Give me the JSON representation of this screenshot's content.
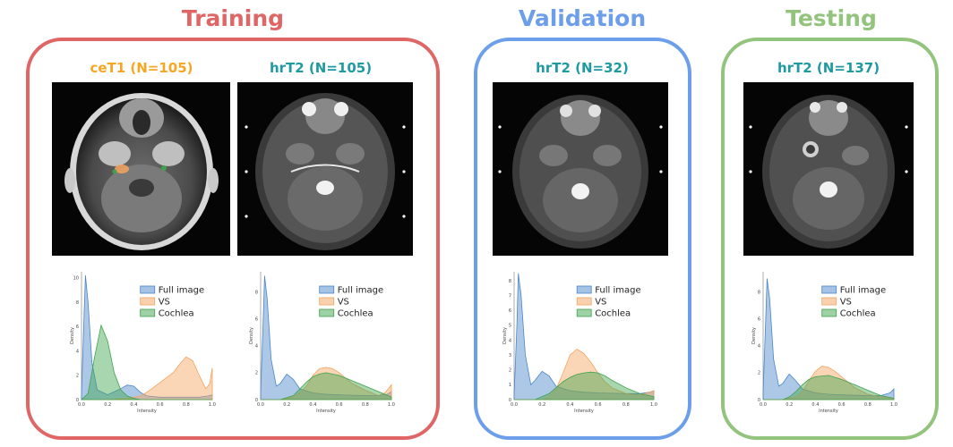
{
  "colors": {
    "training": "#e06666",
    "validation": "#6d9eeb",
    "testing": "#93c47d",
    "cet1_title": "#f6a623",
    "hrt2_title": "#1e9aa0",
    "full_image": "#4a86c8",
    "vs": "#f4a460",
    "cochlea": "#3fa34d"
  },
  "sections": {
    "training": "Training",
    "validation": "Validation",
    "testing": "Testing"
  },
  "panels": [
    {
      "title": "ceT1 (N=105)"
    },
    {
      "title": "hrT2 (N=105)"
    },
    {
      "title": "hrT2 (N=32)"
    },
    {
      "title": "hrT2 (N=137)"
    }
  ],
  "chart_data": [
    {
      "type": "area",
      "xlabel": "Intensity",
      "ylabel": "Density",
      "xlim": [
        0,
        1
      ],
      "ylim": [
        0,
        10.5
      ],
      "xticks": [
        "0.0",
        "0.2",
        "0.4",
        "0.6",
        "0.8",
        "1.0"
      ],
      "yticks": [
        "0",
        "2",
        "4",
        "6",
        "8",
        "10"
      ],
      "legend": "top-right",
      "series": [
        {
          "name": "Full image",
          "x": [
            0,
            0.02,
            0.03,
            0.05,
            0.08,
            0.12,
            0.2,
            0.3,
            0.35,
            0.4,
            0.45,
            0.5,
            0.6,
            0.8,
            0.9,
            0.97,
            1.0
          ],
          "y": [
            0.5,
            7,
            10.2,
            8,
            3,
            0.8,
            0.4,
            0.9,
            1.2,
            1.1,
            0.6,
            0.3,
            0.2,
            0.2,
            0.2,
            0.3,
            0.4
          ]
        },
        {
          "name": "VS",
          "x": [
            0,
            0.2,
            0.35,
            0.45,
            0.5,
            0.55,
            0.6,
            0.7,
            0.75,
            0.8,
            0.85,
            0.9,
            0.95,
            0.98,
            1.0
          ],
          "y": [
            0,
            0,
            0.1,
            0.3,
            0.6,
            1.0,
            1.4,
            2.2,
            2.9,
            3.5,
            3.2,
            2.0,
            0.9,
            1.3,
            2.6
          ]
        },
        {
          "name": "Cochlea",
          "x": [
            0,
            0.05,
            0.1,
            0.15,
            0.2,
            0.25,
            0.3,
            0.35,
            0.4,
            0.45,
            0.5,
            0.6,
            1.0
          ],
          "y": [
            0,
            0.5,
            3.5,
            6.1,
            4.8,
            2.2,
            0.8,
            0.3,
            0.1,
            0,
            0,
            0,
            0
          ]
        }
      ]
    },
    {
      "type": "area",
      "xlabel": "Intensity",
      "ylabel": "Density",
      "xlim": [
        0,
        1
      ],
      "ylim": [
        0,
        9.5
      ],
      "xticks": [
        "0.0",
        "0.2",
        "0.4",
        "0.6",
        "0.8",
        "1.0"
      ],
      "yticks": [
        "0",
        "2",
        "4",
        "6",
        "8"
      ],
      "legend": "top-right",
      "series": [
        {
          "name": "Full image",
          "x": [
            0,
            0.02,
            0.03,
            0.05,
            0.08,
            0.12,
            0.15,
            0.2,
            0.25,
            0.3,
            0.4,
            0.5,
            0.6,
            0.8,
            0.9,
            0.97,
            1.0
          ],
          "y": [
            0.5,
            6,
            9.2,
            7.5,
            3,
            1,
            1.2,
            1.9,
            1.5,
            0.8,
            0.5,
            0.4,
            0.35,
            0.3,
            0.3,
            0.4,
            0.6
          ]
        },
        {
          "name": "VS",
          "x": [
            0,
            0.15,
            0.25,
            0.3,
            0.35,
            0.4,
            0.45,
            0.5,
            0.55,
            0.6,
            0.65,
            0.7,
            0.8,
            0.9,
            0.95,
            1.0
          ],
          "y": [
            0,
            0,
            0.2,
            0.5,
            1.0,
            1.8,
            2.3,
            2.4,
            2.3,
            2.0,
            1.6,
            1.2,
            0.7,
            0.3,
            0.5,
            1.1
          ]
        },
        {
          "name": "Cochlea",
          "x": [
            0,
            0.15,
            0.25,
            0.3,
            0.35,
            0.4,
            0.45,
            0.5,
            0.6,
            0.7,
            0.8,
            0.9,
            1.0
          ],
          "y": [
            0,
            0,
            0.3,
            0.8,
            1.3,
            1.7,
            1.9,
            2.0,
            1.8,
            1.4,
            1.0,
            0.6,
            0.2
          ]
        }
      ]
    },
    {
      "type": "area",
      "xlabel": "Intensity",
      "ylabel": "Density",
      "xlim": [
        0,
        1
      ],
      "ylim": [
        0,
        8.6
      ],
      "xticks": [
        "0.0",
        "0.2",
        "0.4",
        "0.6",
        "0.8",
        "1.0"
      ],
      "yticks": [
        "0",
        "1",
        "2",
        "3",
        "4",
        "5",
        "6",
        "7",
        "8"
      ],
      "legend": "top-right",
      "series": [
        {
          "name": "Full image",
          "x": [
            0,
            0.02,
            0.03,
            0.05,
            0.08,
            0.12,
            0.15,
            0.2,
            0.25,
            0.3,
            0.4,
            0.5,
            0.6,
            0.8,
            0.9,
            0.97,
            1.0
          ],
          "y": [
            0.3,
            5,
            8.5,
            7,
            3,
            1,
            1.3,
            1.9,
            1.6,
            0.9,
            0.6,
            0.5,
            0.45,
            0.4,
            0.4,
            0.5,
            0.6
          ]
        },
        {
          "name": "VS",
          "x": [
            0,
            0.2,
            0.25,
            0.3,
            0.35,
            0.4,
            0.45,
            0.5,
            0.55,
            0.6,
            0.65,
            0.7,
            0.8,
            0.9,
            1.0
          ],
          "y": [
            0,
            0,
            0.2,
            0.7,
            1.8,
            3.0,
            3.4,
            3.1,
            2.5,
            1.8,
            1.2,
            0.8,
            0.4,
            0.3,
            0.6
          ]
        },
        {
          "name": "Cochlea",
          "x": [
            0,
            0.15,
            0.25,
            0.3,
            0.35,
            0.4,
            0.45,
            0.5,
            0.55,
            0.6,
            0.65,
            0.7,
            0.8,
            0.9,
            1.0
          ],
          "y": [
            0,
            0,
            0.4,
            0.8,
            1.2,
            1.5,
            1.7,
            1.8,
            1.85,
            1.8,
            1.6,
            1.3,
            0.8,
            0.4,
            0.2
          ]
        }
      ]
    },
    {
      "type": "area",
      "xlabel": "Intensity",
      "ylabel": "Density",
      "xlim": [
        0,
        1
      ],
      "ylim": [
        0,
        9.5
      ],
      "xticks": [
        "0.0",
        "0.2",
        "0.4",
        "0.6",
        "0.8",
        "1.0"
      ],
      "yticks": [
        "0",
        "2",
        "4",
        "6",
        "8"
      ],
      "legend": "top-right",
      "series": [
        {
          "name": "Full image",
          "x": [
            0,
            0.02,
            0.03,
            0.05,
            0.08,
            0.12,
            0.15,
            0.2,
            0.25,
            0.3,
            0.4,
            0.5,
            0.6,
            0.8,
            0.9,
            0.97,
            1.0
          ],
          "y": [
            0.5,
            6,
            9,
            7.5,
            3,
            1,
            1.2,
            1.9,
            1.4,
            0.8,
            0.5,
            0.4,
            0.35,
            0.3,
            0.3,
            0.5,
            0.8
          ]
        },
        {
          "name": "VS",
          "x": [
            0,
            0.15,
            0.25,
            0.3,
            0.35,
            0.4,
            0.45,
            0.5,
            0.55,
            0.6,
            0.65,
            0.7,
            0.8,
            0.9,
            1.0
          ],
          "y": [
            0,
            0,
            0.2,
            0.6,
            1.4,
            2.1,
            2.5,
            2.4,
            2.1,
            1.7,
            1.3,
            0.9,
            0.4,
            0.2,
            0.1
          ]
        },
        {
          "name": "Cochlea",
          "x": [
            0,
            0.15,
            0.2,
            0.25,
            0.3,
            0.35,
            0.4,
            0.5,
            0.6,
            0.7,
            0.8,
            0.9,
            1.0
          ],
          "y": [
            0,
            0,
            0.2,
            0.6,
            1.1,
            1.5,
            1.7,
            1.8,
            1.5,
            1.1,
            0.7,
            0.3,
            0.1
          ]
        }
      ]
    }
  ]
}
